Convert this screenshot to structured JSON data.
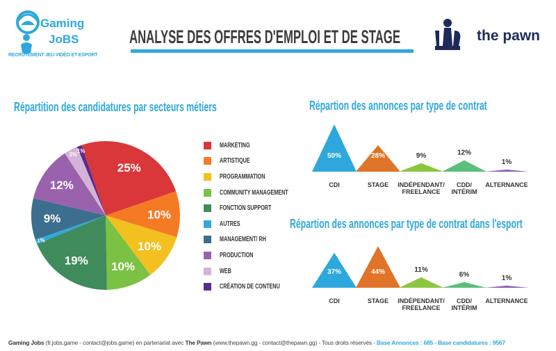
{
  "header": {
    "logo_left": {
      "name": "Gaming Jobs",
      "line1": "Gaming",
      "line2": "JoBS",
      "tagline": "RECRUTEMENT JEU VIDÉO ET ESPORT"
    },
    "title": "ANALYSE DES OFFRES D'EMPLOI ET DE STAGE",
    "logo_right": {
      "text": "the pawn"
    }
  },
  "colors": {
    "accent": "#2ea8dc",
    "title": "#3b3b3b",
    "pawn": "#1c2b5a"
  },
  "chart_data": [
    {
      "type": "pie",
      "title": "Répartition des candidatures par secteurs métiers",
      "categories": [
        "MARKETING",
        "ARTISTIQUE",
        "PROGRAMMATION",
        "COMMUNITY MANAGEMENT",
        "FONCTION SUPPORT",
        "AUTRES",
        "MANAGEMENT/ RH",
        "PRODUCTION",
        "WEB",
        "CRÉATION DE CONTENU"
      ],
      "values": [
        25,
        10,
        10,
        10,
        19,
        1,
        9,
        12,
        3,
        1
      ],
      "labels": [
        "25%",
        "10%",
        "10%",
        "10%",
        "19%",
        "1%",
        "9%",
        "12%",
        "3%",
        "1%"
      ],
      "colors": [
        "#d9373a",
        "#f47a24",
        "#f2c01f",
        "#7bc143",
        "#3f8b5b",
        "#2eaadc",
        "#3c6e8d",
        "#9a62ac",
        "#d5b2d8",
        "#5a2c8f"
      ],
      "legend_position": "right"
    },
    {
      "type": "bar",
      "title": "Répartion des annonces par type de contrat",
      "categories": [
        "CDI",
        "STAGE",
        "INDÉPENDANT/ FREELANCE",
        "CDD/ INTÉRIM",
        "ALTERNANCE"
      ],
      "values": [
        50,
        28,
        9,
        12,
        1
      ],
      "labels": [
        "50%",
        "28%",
        "9%",
        "12%",
        "1%"
      ],
      "colors": [
        "#2ea8dc",
        "#e07428",
        "#8cc63f",
        "#5bbf7a",
        "#8c5bb0"
      ]
    },
    {
      "type": "bar",
      "title": "Répartion des annonces par type de contrat dans l'esport",
      "categories": [
        "CDI",
        "STAGE",
        "INDÉPENDANT/ FREELANCE",
        "CDD/ INTÉRIM",
        "ALTERNANCE"
      ],
      "values": [
        37,
        44,
        11,
        6,
        1
      ],
      "labels": [
        "37%",
        "44%",
        "11%",
        "6%",
        "1%"
      ],
      "colors": [
        "#2ea8dc",
        "#e07428",
        "#8cc63f",
        "#5bbf7a",
        "#8c5bb0"
      ]
    }
  ],
  "footer": {
    "brand1": "Gaming Jobs",
    "text1": " (fr.jobs.game - contact@jobs.game) en partenariat avec ",
    "brand2": "The Pawn",
    "text2": " (www.thepawn.gg - contact@thepawn.gg) - Tous droits réservés - ",
    "stats": "Base Annonces : 685 - Base candidatures : 9567"
  }
}
